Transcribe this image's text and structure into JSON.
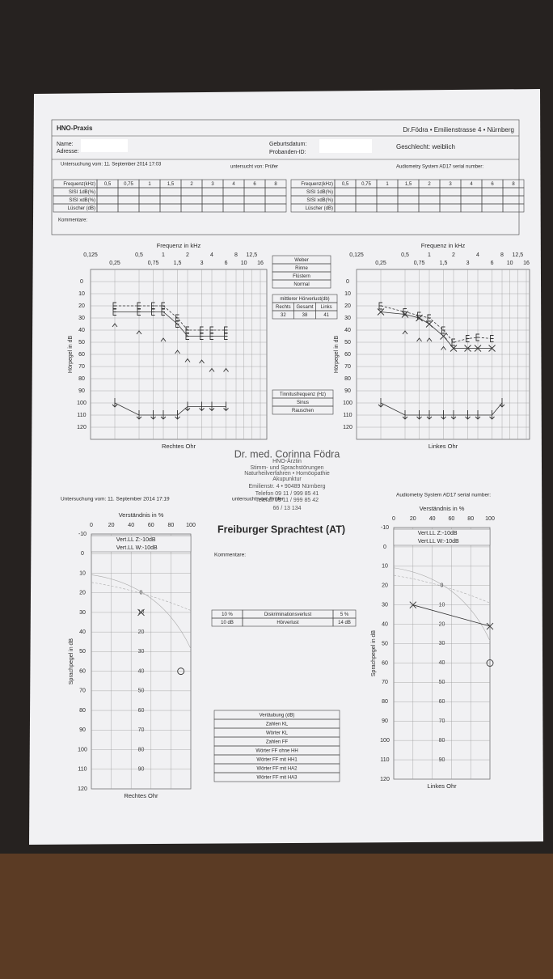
{
  "header": {
    "practice": "HNO-Praxis",
    "doctor_address": "Dr.Födra • Emilienstrasse 4 • Nürnberg",
    "name_label": "Name:",
    "address_label": "Adresse:",
    "birth_label": "Geburtsdatum:",
    "id_label": "Probanden-ID:",
    "gender": "Geschlecht: weiblich"
  },
  "exam1": {
    "date": "Untersuchung vom: 11. September 2014 17:03",
    "examiner": "untersucht von: Prüfer",
    "system": "Audiometry System AD17 serial number:"
  },
  "sisi_table": {
    "columns": [
      "Frequenz(kHz)",
      "0,5",
      "0,75",
      "1",
      "1,5",
      "2",
      "3",
      "4",
      "6",
      "8"
    ],
    "rows": [
      "SISI 1dB(%)",
      "SISI xdB(%)",
      "Lüscher (dB)"
    ]
  },
  "comments_label": "Kommentare:",
  "tests": {
    "rows": [
      "Weber",
      "Rinne",
      "Flüstern",
      "Normal"
    ]
  },
  "mean_loss": {
    "title": "mittlerer Hörverlust(db)",
    "columns": [
      "Rechts",
      "Gesamt",
      "Links"
    ],
    "values": [
      32,
      38,
      41
    ]
  },
  "tinnitus": {
    "title": "Tinnitusfrequenz (Hz)",
    "rows": [
      "Sinus",
      "Rauschen"
    ]
  },
  "stamp": {
    "lines": [
      "Dr. med. Corinna Födra",
      "HNO-Ärztin",
      "Stimm- und Sprachstörungen",
      "Naturheilverfahren • Homöopathie",
      "Akupunktur",
      "Emilienstr. 4 • 90489 Nürnberg",
      "Telefon 09 11 / 999 85 41",
      "Telefax 09 11 / 999 85 42",
      "66 / 13 134"
    ]
  },
  "exam2": {
    "date": "Untersuchung vom: 11. September 2014 17:19",
    "examiner": "untersucht von: Prüfer",
    "system": "Audiometry System AD17 serial number:"
  },
  "speech_test": {
    "title": "Freiburger Sprachtest (AT)",
    "comments_label": "Kommentare:",
    "results": [
      [
        "10 %",
        "Diskriminationsverlust",
        "5 %"
      ],
      [
        "10 dB",
        "Hörverlust",
        "14 dB"
      ]
    ],
    "masking": {
      "title": "Vertäubung (dB)",
      "rows": [
        "Zahlen KL",
        "Wörter KL",
        "Zahlen FF",
        "Wörter FF ohne HH",
        "Wörter FF mit HH1",
        "Wörter FF mit HA2",
        "Wörter FF mit HA3"
      ]
    }
  },
  "chart_data": [
    {
      "type": "line",
      "title": "Rechtes Ohr",
      "x_label": "Frequenz in kHz",
      "y_label": "Hörpegel in dB",
      "xlog": true,
      "y_inverted": true,
      "grid": true,
      "xlim": [
        0.125,
        16
      ],
      "xticks": [
        {
          "value": 0.125,
          "label": "0,125"
        },
        {
          "value": 0.25,
          "label": "0,25"
        },
        {
          "value": 0.5,
          "label": "0,5"
        },
        {
          "value": 0.75,
          "label": "0,75"
        },
        1,
        {
          "value": 1.5,
          "label": "1,5"
        },
        2,
        3,
        4,
        6,
        8,
        10,
        {
          "value": 12.5,
          "label": "12,5"
        },
        16
      ],
      "ylim": [
        -10,
        130
      ],
      "yticks": [
        0,
        10,
        20,
        30,
        40,
        50,
        60,
        70,
        80,
        90,
        100,
        110,
        120
      ],
      "series": [
        {
          "marker": "bracket",
          "line": "dashed",
          "color": "#333",
          "x": [
            0.25,
            0.5,
            0.75,
            1,
            1.5,
            2,
            3,
            4,
            6
          ],
          "values": [
            20,
            20,
            20,
            20,
            30,
            40,
            40,
            40,
            40
          ]
        },
        {
          "marker": "bracket",
          "line": "solid",
          "color": "#333",
          "x": [
            0.25,
            0.5,
            0.75,
            1,
            1.5,
            2,
            3,
            4,
            6
          ],
          "values": [
            25,
            25,
            25,
            25,
            35,
            45,
            45,
            45,
            45
          ]
        },
        {
          "marker": "caret",
          "line": "none",
          "color": "#333",
          "x": [
            0.25,
            0.5,
            1,
            1.5,
            2,
            3,
            4,
            6
          ],
          "values": [
            36,
            42,
            48,
            58,
            65,
            66,
            73,
            73
          ]
        },
        {
          "marker": "arrow",
          "line": "solid",
          "color": "#333",
          "x": [
            0.25,
            0.5,
            0.75,
            1,
            1.5,
            2,
            3,
            4,
            6
          ],
          "values": [
            100,
            110,
            110,
            110,
            110,
            103,
            103,
            103,
            103
          ]
        }
      ]
    },
    {
      "type": "line",
      "title": "Linkes Ohr",
      "x_label": "Frequenz in kHz",
      "y_label": "Hörpegel in dB",
      "xlog": true,
      "y_inverted": true,
      "grid": true,
      "xlim": [
        0.125,
        16
      ],
      "xticks": [
        {
          "value": 0.125,
          "label": "0,125"
        },
        {
          "value": 0.25,
          "label": "0,25"
        },
        {
          "value": 0.5,
          "label": "0,5"
        },
        {
          "value": 0.75,
          "label": "0,75"
        },
        1,
        {
          "value": 1.5,
          "label": "1,5"
        },
        2,
        3,
        4,
        6,
        8,
        10,
        {
          "value": 12.5,
          "label": "12,5"
        },
        16
      ],
      "ylim": [
        -10,
        130
      ],
      "yticks": [
        0,
        10,
        20,
        30,
        40,
        50,
        60,
        70,
        80,
        90,
        100,
        110,
        120
      ],
      "series": [
        {
          "marker": "bracket",
          "line": "dashed",
          "color": "#333",
          "x": [
            0.25,
            0.5,
            0.75,
            1,
            1.5,
            2,
            3,
            4,
            6
          ],
          "values": [
            20,
            25,
            28,
            30,
            40,
            50,
            47,
            46,
            47
          ]
        },
        {
          "marker": "x",
          "line": "solid",
          "color": "#333",
          "x": [
            0.25,
            0.5,
            0.75,
            1,
            1.5,
            2,
            3,
            4,
            6
          ],
          "values": [
            25,
            27,
            30,
            35,
            45,
            55,
            55,
            55,
            55
          ]
        },
        {
          "marker": "caret",
          "line": "none",
          "color": "#333",
          "x": [
            0.5,
            0.75,
            1,
            1.5
          ],
          "values": [
            42,
            48,
            48,
            55
          ]
        },
        {
          "marker": "arrow",
          "line": "solid",
          "color": "#333",
          "x": [
            0.25,
            0.5,
            0.75,
            1,
            1.5,
            2,
            3,
            4,
            6,
            8
          ],
          "values": [
            100,
            110,
            110,
            110,
            110,
            110,
            110,
            110,
            110,
            100
          ]
        }
      ]
    },
    {
      "type": "scatter",
      "title": "Rechtes Ohr",
      "x_label": "Verständnis in %",
      "y_label": "Sprachpegel in dB",
      "y_inverted": true,
      "grid": true,
      "xlim": [
        0,
        100
      ],
      "xticks": [
        0,
        20,
        40,
        60,
        80,
        100
      ],
      "ylim": [
        -10,
        120
      ],
      "yticks": [
        -10,
        0,
        10,
        20,
        30,
        40,
        50,
        60,
        70,
        80,
        90,
        100,
        110,
        120
      ],
      "legend": [
        "Vert.LL Z:-10dB",
        "Vert.LL W:-10dB"
      ],
      "reference_labels": [
        "0",
        "10",
        "20",
        "30",
        "40",
        "50",
        "60",
        "70",
        "80",
        "90"
      ],
      "series": [
        {
          "marker": "x",
          "line": "none",
          "color": "#333",
          "x": [
            50
          ],
          "values": [
            30
          ]
        },
        {
          "marker": "circle",
          "line": "none",
          "color": "#333",
          "x": [
            90
          ],
          "values": [
            60
          ]
        }
      ]
    },
    {
      "type": "scatter",
      "title": "Linkes Ohr",
      "x_label": "Verständnis in %",
      "y_label": "Sprachpegel in dB",
      "y_inverted": true,
      "grid": true,
      "xlim": [
        0,
        100
      ],
      "xticks": [
        0,
        20,
        40,
        60,
        80,
        100
      ],
      "ylim": [
        -10,
        120
      ],
      "yticks": [
        -10,
        0,
        10,
        20,
        30,
        40,
        50,
        60,
        70,
        80,
        90,
        100,
        110,
        120
      ],
      "legend": [
        "Vert.LL Z:-10dB",
        "Vert.LL W:-10dB"
      ],
      "reference_labels": [
        "0",
        "10",
        "20",
        "30",
        "40",
        "50",
        "60",
        "70",
        "80",
        "90"
      ],
      "series": [
        {
          "marker": "x",
          "line": "solid",
          "color": "#333",
          "x": [
            20,
            100
          ],
          "values": [
            30,
            41
          ]
        },
        {
          "marker": "circle",
          "line": "none",
          "color": "#333",
          "x": [
            100
          ],
          "values": [
            60
          ]
        }
      ]
    }
  ]
}
